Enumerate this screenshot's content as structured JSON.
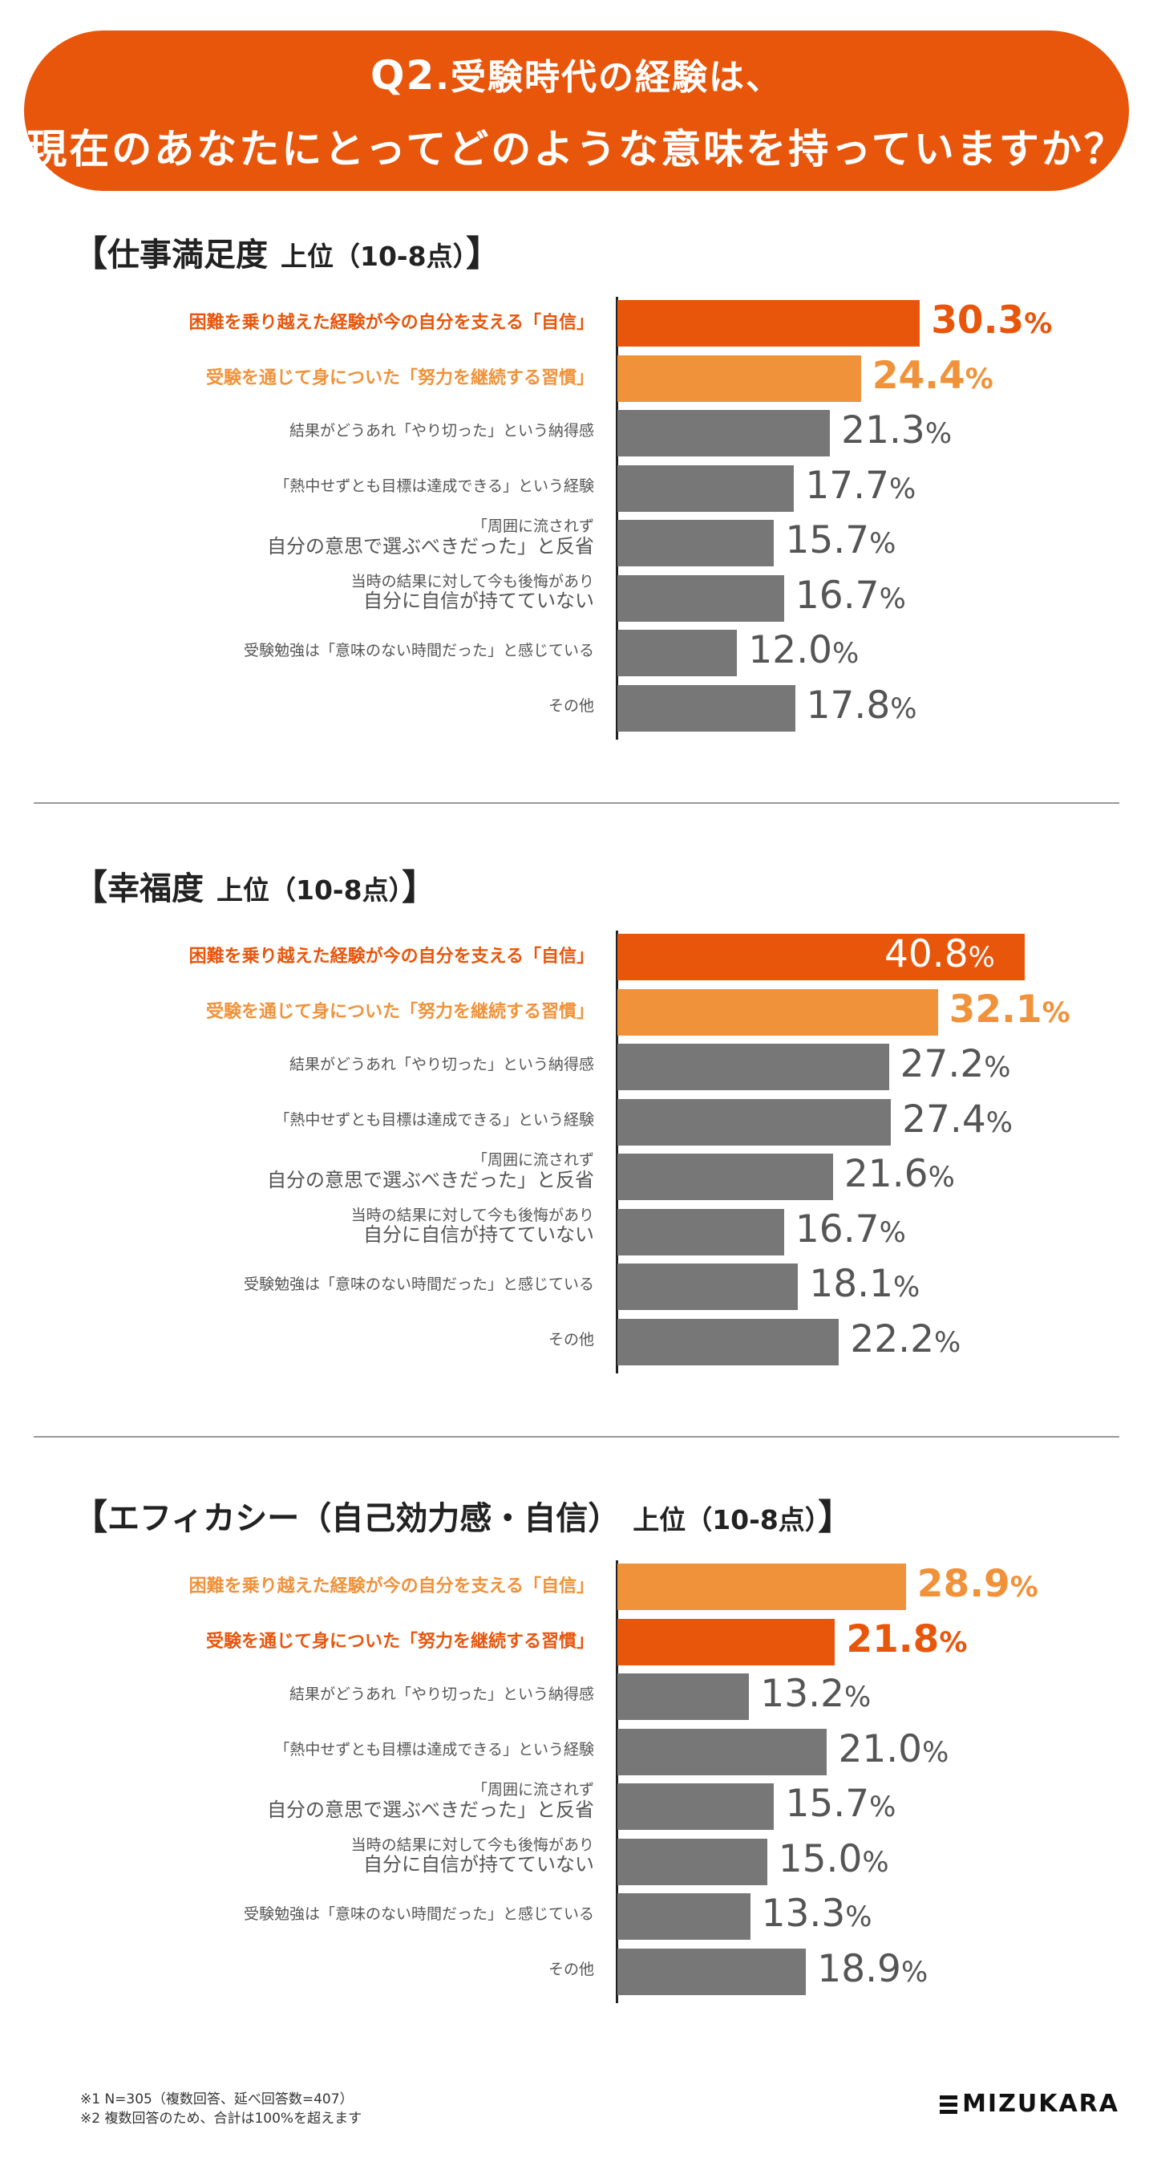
{
  "header": {
    "line1_q": "Q2",
    "line1_rest": ".受験時代の経験は、",
    "line2": "現在のあなたにとってどのような意味を持っていますか？"
  },
  "colors": {
    "red": "#e8560c",
    "orange": "#f0923a",
    "gray": "#777777"
  },
  "chart_data": [
    {
      "type": "bar",
      "orientation": "horizontal",
      "title": "仕事満足度",
      "subtitle": "上位（10-8点）",
      "xlim": [
        0,
        45
      ],
      "categories": [
        {
          "main": "困難を乗り越えた経験が今の自分を支える「自信」"
        },
        {
          "main": "受験を通じて身についた「努力を継続する習慣」"
        },
        {
          "main": "結果がどうあれ「やり切った」という納得感"
        },
        {
          "main": "「熱中せずとも目標は達成できる」という経験"
        },
        {
          "top": "「周囲に流されず",
          "bottom": "自分の意思で選ぶべきだった」と反省"
        },
        {
          "top": "当時の結果に対して今も後悔があり",
          "bottom": "自分に自信が持てていない"
        },
        {
          "main": "受験勉強は「意味のない時間だった」と感じている"
        },
        {
          "main": "その他"
        }
      ],
      "values": [
        30.3,
        24.4,
        21.3,
        17.7,
        15.7,
        16.7,
        12.0,
        17.8
      ],
      "labels": [
        "30.3",
        "24.4",
        "21.3",
        "17.7",
        "15.7",
        "16.7",
        "12.0",
        "17.8"
      ],
      "highlight": [
        "red",
        "orange",
        "gray",
        "gray",
        "gray",
        "gray",
        "gray",
        "gray"
      ],
      "unit": "%"
    },
    {
      "type": "bar",
      "orientation": "horizontal",
      "title": "幸福度",
      "subtitle": "上位（10-8点）",
      "xlim": [
        0,
        45
      ],
      "categories": [
        {
          "main": "困難を乗り越えた経験が今の自分を支える「自信」"
        },
        {
          "main": "受験を通じて身についた「努力を継続する習慣」"
        },
        {
          "main": "結果がどうあれ「やり切った」という納得感"
        },
        {
          "main": "「熱中せずとも目標は達成できる」という経験"
        },
        {
          "top": "「周囲に流されず",
          "bottom": "自分の意思で選ぶべきだった」と反省"
        },
        {
          "top": "当時の結果に対して今も後悔があり",
          "bottom": "自分に自信が持てていない"
        },
        {
          "main": "受験勉強は「意味のない時間だった」と感じている"
        },
        {
          "main": "その他"
        }
      ],
      "values": [
        40.8,
        32.1,
        27.2,
        27.4,
        21.6,
        16.7,
        18.1,
        22.2
      ],
      "labels": [
        "40.8",
        "32.1",
        "27.2",
        "27.4",
        "21.6",
        "16.7",
        "18.1",
        "22.2"
      ],
      "highlight": [
        "red",
        "orange",
        "gray",
        "gray",
        "gray",
        "gray",
        "gray",
        "gray"
      ],
      "unit": "%"
    },
    {
      "type": "bar",
      "orientation": "horizontal",
      "title": "エフィカシー（自己効力感・自信）",
      "subtitle": "上位（10-8点）",
      "xlim": [
        0,
        45
      ],
      "categories": [
        {
          "main": "困難を乗り越えた経験が今の自分を支える「自信」"
        },
        {
          "main": "受験を通じて身についた「努力を継続する習慣」"
        },
        {
          "main": "結果がどうあれ「やり切った」という納得感"
        },
        {
          "main": "「熱中せずとも目標は達成できる」という経験"
        },
        {
          "top": "「周囲に流されず",
          "bottom": "自分の意思で選ぶべきだった」と反省"
        },
        {
          "top": "当時の結果に対して今も後悔があり",
          "bottom": "自分に自信が持てていない"
        },
        {
          "main": "受験勉強は「意味のない時間だった」と感じている"
        },
        {
          "main": "その他"
        }
      ],
      "values": [
        28.9,
        21.8,
        13.2,
        21.0,
        15.7,
        15.0,
        13.3,
        18.9
      ],
      "labels": [
        "28.9",
        "21.8",
        "13.2",
        "21.0",
        "15.7",
        "15.0",
        "13.3",
        "18.9"
      ],
      "highlight": [
        "orange",
        "red",
        "gray",
        "gray",
        "gray",
        "gray",
        "gray",
        "gray"
      ],
      "unit": "%"
    }
  ],
  "footnotes": [
    "※1 N=305（複数回答、延べ回答数=407）",
    "※2 複数回答のため、合計は100%を超えます"
  ],
  "logo": "MIZUKARA"
}
